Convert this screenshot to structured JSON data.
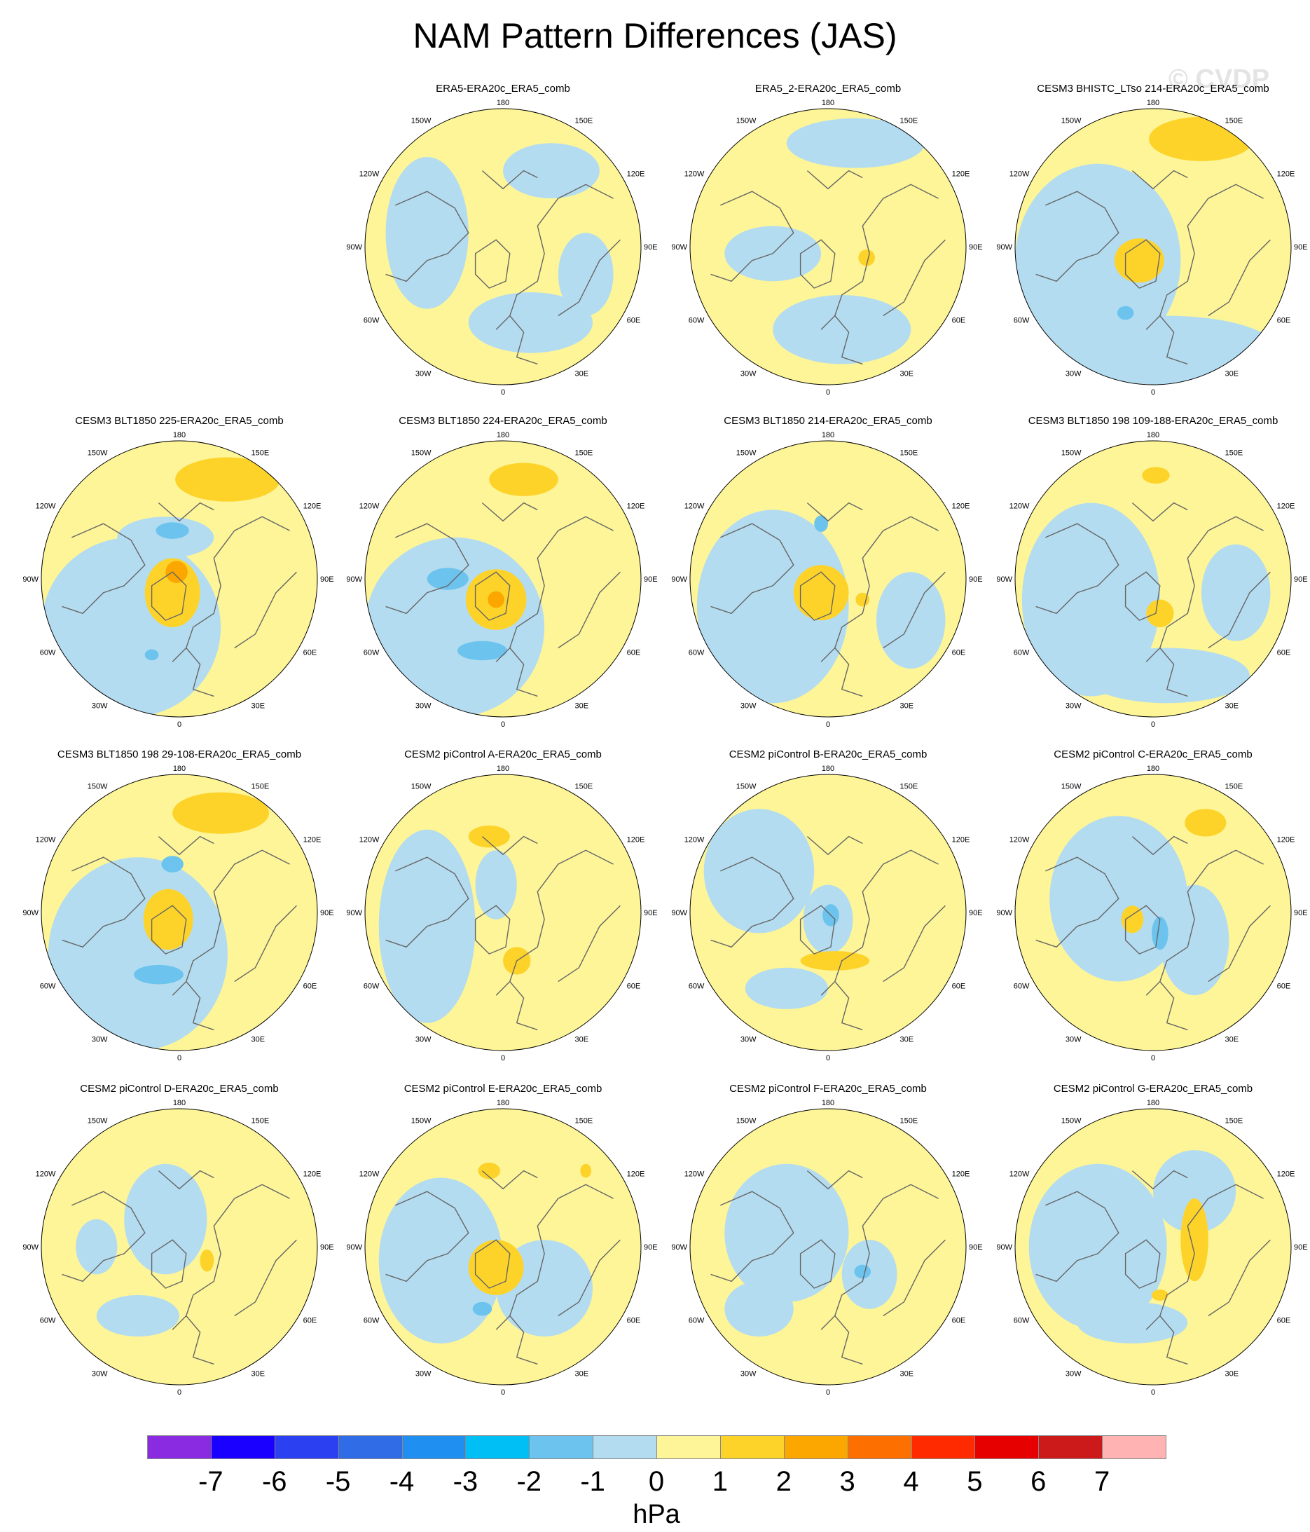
{
  "title": "NAM Pattern Differences (JAS)",
  "watermark": "© CVDP",
  "colors": {
    "ocean_pos": "#fdf597",
    "land_line": "#666666",
    "neg1": "#b4dcf0",
    "neg2": "#6cc4ee",
    "pos1": "#fdd32a",
    "pos2": "#fca600"
  },
  "map_labels": {
    "top": "180",
    "bottom": "0",
    "left": "90W",
    "right": "90E",
    "ul1": "150W",
    "ur1": "150E",
    "ul2": "120W",
    "ur2": "120E",
    "ll1": "60W",
    "lr1": "60E",
    "ll2": "30W",
    "lr2": "30E"
  },
  "panels": [
    {
      "id": "p1",
      "row": 0,
      "col": 1,
      "title": "ERA5-ERA20c_ERA5_comb",
      "blobs": [
        [
          "neg1",
          0.35,
          -0.55,
          0.35,
          0.2
        ],
        [
          "neg1",
          -0.55,
          -0.1,
          0.3,
          0.55
        ],
        [
          "neg1",
          0.2,
          0.55,
          0.45,
          0.22
        ],
        [
          "neg1",
          0.6,
          0.2,
          0.2,
          0.3
        ]
      ]
    },
    {
      "id": "p2",
      "row": 0,
      "col": 2,
      "title": "ERA5_2-ERA20c_ERA5_comb",
      "blobs": [
        [
          "neg1",
          0.2,
          -0.75,
          0.5,
          0.18
        ],
        [
          "neg1",
          -0.4,
          0.05,
          0.35,
          0.2
        ],
        [
          "neg1",
          0.1,
          0.6,
          0.5,
          0.25
        ],
        [
          "pos1",
          0.28,
          0.08,
          0.06,
          0.06
        ]
      ]
    },
    {
      "id": "p3",
      "row": 0,
      "col": 3,
      "title": "CESM3 BHISTC_LTso 214-ERA20c_ERA5_comb",
      "blobs": [
        [
          "neg1",
          -0.4,
          0.1,
          0.6,
          0.7
        ],
        [
          "neg1",
          0.1,
          0.75,
          0.8,
          0.25
        ],
        [
          "pos1",
          0.35,
          -0.78,
          0.38,
          0.16
        ],
        [
          "pos1",
          -0.1,
          0.1,
          0.18,
          0.16
        ],
        [
          "neg2",
          -0.2,
          0.48,
          0.06,
          0.05
        ]
      ]
    },
    {
      "id": "p4",
      "row": 1,
      "col": 0,
      "title": "CESM3 BLT1850 225-ERA20c_ERA5_comb",
      "blobs": [
        [
          "neg1",
          -0.35,
          0.35,
          0.65,
          0.65
        ],
        [
          "neg1",
          -0.1,
          -0.3,
          0.35,
          0.15
        ],
        [
          "pos1",
          0.35,
          -0.72,
          0.38,
          0.16
        ],
        [
          "pos1",
          -0.05,
          0.1,
          0.2,
          0.25
        ],
        [
          "pos2",
          -0.02,
          -0.05,
          0.08,
          0.08
        ],
        [
          "neg2",
          -0.05,
          -0.35,
          0.12,
          0.06
        ],
        [
          "neg2",
          -0.2,
          0.55,
          0.05,
          0.04
        ]
      ]
    },
    {
      "id": "p5",
      "row": 1,
      "col": 1,
      "title": "CESM3 BLT1850 224-ERA20c_ERA5_comb",
      "blobs": [
        [
          "neg1",
          -0.35,
          0.35,
          0.65,
          0.65
        ],
        [
          "pos1",
          0.15,
          -0.72,
          0.25,
          0.12
        ],
        [
          "pos1",
          -0.05,
          0.15,
          0.22,
          0.22
        ],
        [
          "neg2",
          -0.4,
          0.0,
          0.15,
          0.08
        ],
        [
          "neg2",
          -0.15,
          0.52,
          0.18,
          0.07
        ],
        [
          "pos2",
          -0.05,
          0.15,
          0.06,
          0.06
        ]
      ]
    },
    {
      "id": "p6",
      "row": 1,
      "col": 2,
      "title": "CESM3 BLT1850 214-ERA20c_ERA5_comb",
      "blobs": [
        [
          "neg1",
          -0.4,
          0.2,
          0.55,
          0.7
        ],
        [
          "neg1",
          0.6,
          0.3,
          0.25,
          0.35
        ],
        [
          "pos1",
          -0.05,
          0.1,
          0.2,
          0.2
        ],
        [
          "pos1",
          0.25,
          0.15,
          0.05,
          0.05
        ],
        [
          "neg2",
          -0.05,
          -0.4,
          0.05,
          0.06
        ]
      ]
    },
    {
      "id": "p7",
      "row": 1,
      "col": 3,
      "title": "CESM3 BLT1850 198 109-188-ERA20c_ERA5_comb",
      "blobs": [
        [
          "neg1",
          -0.45,
          0.15,
          0.5,
          0.7
        ],
        [
          "neg1",
          0.1,
          0.7,
          0.6,
          0.2
        ],
        [
          "neg1",
          0.6,
          0.1,
          0.25,
          0.35
        ],
        [
          "pos1",
          0.05,
          0.25,
          0.1,
          0.1
        ],
        [
          "pos1",
          0.02,
          -0.75,
          0.1,
          0.06
        ]
      ]
    },
    {
      "id": "p8",
      "row": 2,
      "col": 0,
      "title": "CESM3 BLT1850 198 29-108-ERA20c_ERA5_comb",
      "blobs": [
        [
          "neg1",
          -0.3,
          0.3,
          0.65,
          0.7
        ],
        [
          "pos1",
          0.3,
          -0.72,
          0.35,
          0.15
        ],
        [
          "pos1",
          -0.08,
          0.05,
          0.18,
          0.22
        ],
        [
          "neg2",
          -0.15,
          0.45,
          0.18,
          0.07
        ],
        [
          "neg2",
          -0.05,
          -0.35,
          0.08,
          0.06
        ]
      ]
    },
    {
      "id": "p9",
      "row": 2,
      "col": 1,
      "title": "CESM2 piControl A-ERA20c_ERA5_comb",
      "blobs": [
        [
          "neg1",
          -0.55,
          0.1,
          0.35,
          0.7
        ],
        [
          "neg1",
          -0.05,
          -0.2,
          0.15,
          0.25
        ],
        [
          "pos1",
          -0.1,
          -0.55,
          0.15,
          0.08
        ],
        [
          "pos1",
          0.1,
          0.35,
          0.1,
          0.1
        ]
      ]
    },
    {
      "id": "p10",
      "row": 2,
      "col": 2,
      "title": "CESM2 piControl B-ERA20c_ERA5_comb",
      "blobs": [
        [
          "neg1",
          -0.5,
          -0.3,
          0.4,
          0.45
        ],
        [
          "neg1",
          0.0,
          0.05,
          0.18,
          0.25
        ],
        [
          "neg1",
          -0.3,
          0.55,
          0.3,
          0.15
        ],
        [
          "pos1",
          0.05,
          0.35,
          0.25,
          0.07
        ],
        [
          "neg2",
          0.02,
          0.02,
          0.06,
          0.08
        ]
      ]
    },
    {
      "id": "p11",
      "row": 2,
      "col": 3,
      "title": "CESM2 piControl C-ERA20c_ERA5_comb",
      "blobs": [
        [
          "neg1",
          -0.25,
          -0.1,
          0.5,
          0.6
        ],
        [
          "neg1",
          0.3,
          0.2,
          0.25,
          0.4
        ],
        [
          "pos1",
          0.38,
          -0.65,
          0.15,
          0.1
        ],
        [
          "pos1",
          -0.15,
          0.05,
          0.08,
          0.1
        ],
        [
          "neg2",
          0.05,
          0.15,
          0.06,
          0.12
        ]
      ]
    },
    {
      "id": "p12",
      "row": 3,
      "col": 0,
      "title": "CESM2 piControl D-ERA20c_ERA5_comb",
      "blobs": [
        [
          "neg1",
          -0.1,
          -0.2,
          0.3,
          0.4
        ],
        [
          "neg1",
          -0.3,
          0.5,
          0.3,
          0.15
        ],
        [
          "neg1",
          -0.6,
          0.0,
          0.15,
          0.2
        ],
        [
          "pos1",
          0.2,
          0.1,
          0.05,
          0.08
        ]
      ]
    },
    {
      "id": "p13",
      "row": 3,
      "col": 1,
      "title": "CESM2 piControl E-ERA20c_ERA5_comb",
      "blobs": [
        [
          "neg1",
          -0.45,
          0.1,
          0.45,
          0.6
        ],
        [
          "neg1",
          0.3,
          0.3,
          0.35,
          0.35
        ],
        [
          "pos1",
          -0.05,
          0.15,
          0.2,
          0.2
        ],
        [
          "pos1",
          -0.1,
          -0.55,
          0.08,
          0.06
        ],
        [
          "pos1",
          0.6,
          -0.55,
          0.04,
          0.05
        ],
        [
          "neg2",
          -0.15,
          0.45,
          0.07,
          0.05
        ]
      ]
    },
    {
      "id": "p14",
      "row": 3,
      "col": 2,
      "title": "CESM2 piControl F-ERA20c_ERA5_comb",
      "blobs": [
        [
          "neg1",
          -0.3,
          -0.1,
          0.45,
          0.5
        ],
        [
          "neg1",
          0.3,
          0.2,
          0.2,
          0.25
        ],
        [
          "neg1",
          -0.5,
          0.45,
          0.25,
          0.2
        ],
        [
          "neg2",
          0.25,
          0.18,
          0.06,
          0.05
        ]
      ]
    },
    {
      "id": "p15",
      "row": 3,
      "col": 3,
      "title": "CESM2 piControl G-ERA20c_ERA5_comb",
      "blobs": [
        [
          "neg1",
          -0.4,
          0.0,
          0.5,
          0.6
        ],
        [
          "neg1",
          0.3,
          -0.4,
          0.3,
          0.3
        ],
        [
          "neg1",
          -0.15,
          0.55,
          0.4,
          0.15
        ],
        [
          "pos1",
          0.3,
          -0.05,
          0.1,
          0.3
        ],
        [
          "pos1",
          0.05,
          0.35,
          0.06,
          0.04
        ]
      ]
    }
  ],
  "legend": {
    "unit": "hPa",
    "colors": [
      "#8a2be2",
      "#1a00ff",
      "#2b40f0",
      "#2f6ce6",
      "#1f8ff2",
      "#00bff5",
      "#6cc4ee",
      "#b4dcf0",
      "#fdf597",
      "#fdd32a",
      "#fca600",
      "#fd7000",
      "#ff2a00",
      "#e60000",
      "#cc1a1a",
      "#ffb3b3"
    ],
    "ticks": [
      "-7",
      "-6",
      "-5",
      "-4",
      "-3",
      "-2",
      "-1",
      "0",
      "1",
      "2",
      "3",
      "4",
      "5",
      "6",
      "7"
    ]
  }
}
